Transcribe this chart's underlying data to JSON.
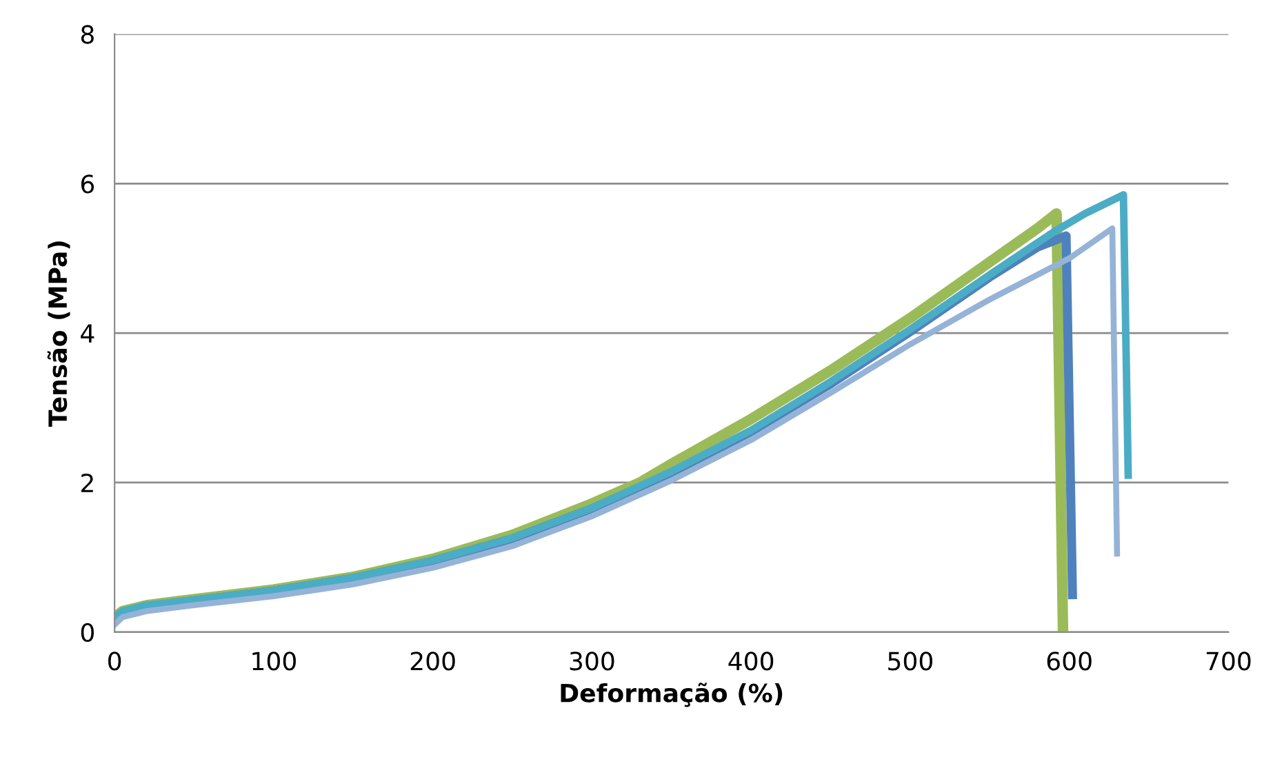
{
  "chart_data": {
    "type": "line",
    "xlabel": "Deformação (%)",
    "ylabel": "Tensão (MPa)",
    "xlim": [
      0,
      700
    ],
    "xticks": [
      0,
      100,
      200,
      300,
      400,
      500,
      600,
      700
    ],
    "ylim": [
      0,
      8
    ],
    "yticks": [
      0,
      2,
      4,
      6,
      8
    ],
    "grid": "y",
    "marker": "none",
    "line_style": "solid",
    "series": [
      {
        "color": "#9bbb59",
        "x": [
          0,
          5,
          20,
          50,
          100,
          150,
          200,
          250,
          300,
          330,
          350,
          400,
          450,
          500,
          550,
          580,
          592,
          596
        ],
        "values": [
          0.2,
          0.28,
          0.36,
          0.44,
          0.57,
          0.74,
          0.98,
          1.3,
          1.72,
          2.0,
          2.25,
          2.85,
          3.5,
          4.2,
          4.95,
          5.4,
          5.6,
          0.05
        ]
      },
      {
        "color": "#4f81bd",
        "x": [
          0,
          5,
          20,
          50,
          100,
          150,
          200,
          250,
          300,
          350,
          400,
          450,
          500,
          550,
          580,
          598,
          602
        ],
        "values": [
          0.18,
          0.26,
          0.34,
          0.42,
          0.55,
          0.72,
          0.95,
          1.25,
          1.65,
          2.13,
          2.68,
          3.32,
          4.02,
          4.75,
          5.15,
          5.3,
          0.5
        ]
      },
      {
        "color": "#4bacc6",
        "x": [
          0,
          5,
          20,
          50,
          100,
          150,
          200,
          250,
          300,
          350,
          400,
          450,
          500,
          550,
          590,
          610,
          634,
          637
        ],
        "values": [
          0.2,
          0.28,
          0.36,
          0.43,
          0.56,
          0.73,
          0.96,
          1.26,
          1.66,
          2.15,
          2.7,
          3.35,
          4.05,
          4.78,
          5.35,
          5.6,
          5.85,
          2.1
        ]
      },
      {
        "color": "#95b3d7",
        "x": [
          0,
          5,
          20,
          50,
          100,
          150,
          200,
          250,
          300,
          350,
          400,
          450,
          500,
          550,
          600,
          627,
          630
        ],
        "values": [
          0.1,
          0.2,
          0.28,
          0.36,
          0.48,
          0.64,
          0.86,
          1.15,
          1.55,
          2.03,
          2.57,
          3.2,
          3.85,
          4.45,
          5.0,
          5.4,
          1.05
        ]
      }
    ]
  }
}
